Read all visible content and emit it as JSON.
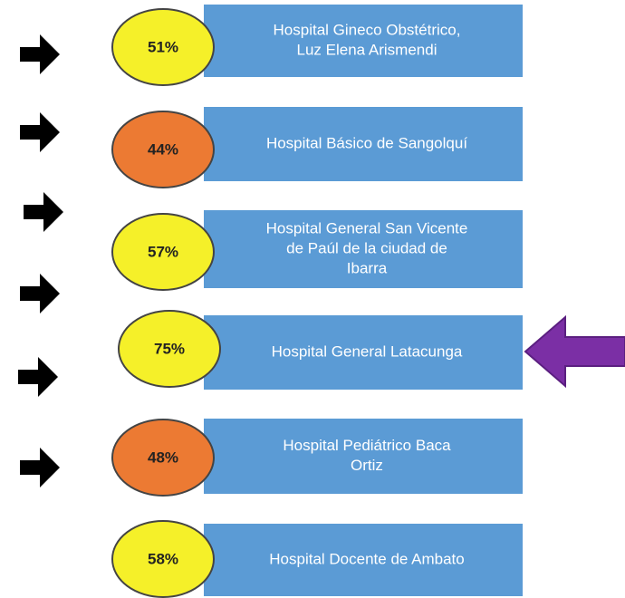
{
  "items": [
    {
      "percent": "51%",
      "color": "#f5f029",
      "label": [
        "Hospital Gineco Obstétrico,",
        "Luz Elena Arismendi"
      ]
    },
    {
      "percent": "44%",
      "color": "#ec7a33",
      "label": [
        "Hospital Básico de Sangolquí"
      ]
    },
    {
      "percent": "57%",
      "color": "#f5f029",
      "label": [
        "Hospital General San Vicente",
        "de Paúl de la ciudad de",
        "Ibarra"
      ]
    },
    {
      "percent": "75%",
      "color": "#f5f029",
      "label": [
        "Hospital General Latacunga"
      ]
    },
    {
      "percent": "48%",
      "color": "#ec7a33",
      "label": [
        "Hospital Pediátrico Baca",
        "Ortiz"
      ]
    },
    {
      "percent": "58%",
      "color": "#f5f029",
      "label": [
        "Hospital Docente de Ambato"
      ]
    }
  ]
}
